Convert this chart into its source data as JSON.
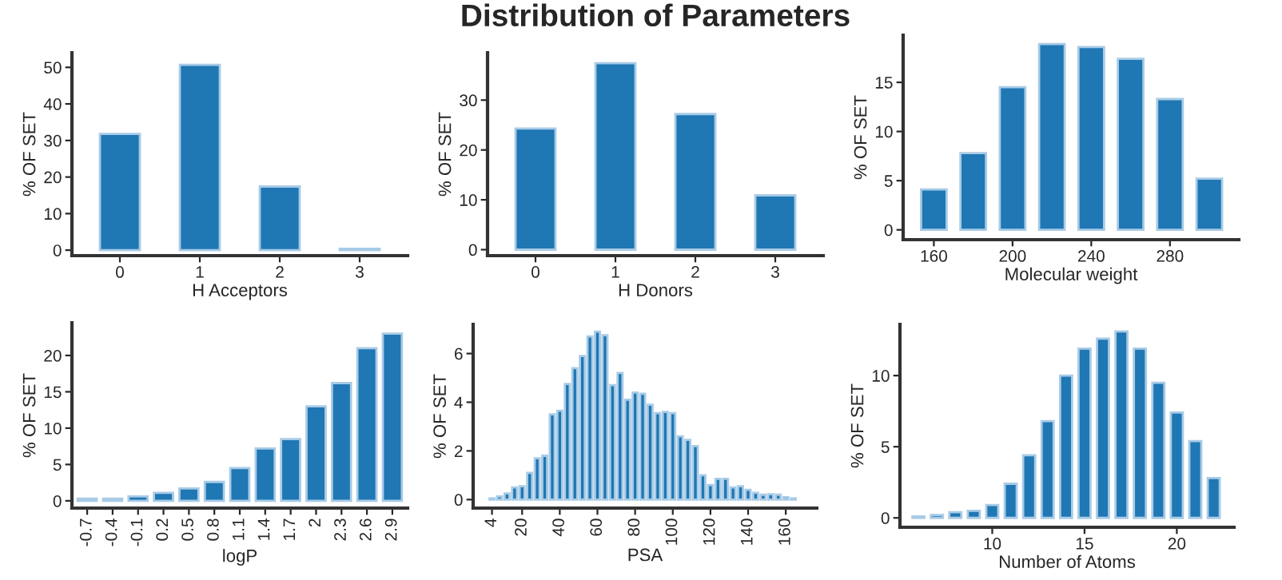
{
  "chart_data": [
    {
      "type": "bar",
      "xlabel": "H Acceptors",
      "ylabel": "% OF SET",
      "categories": [
        "0",
        "1",
        "2",
        "3"
      ],
      "values": [
        31.8,
        50.7,
        17.4,
        0.4
      ],
      "color": "#1f77b4",
      "ylim": [
        -1.5,
        54
      ],
      "yticks": [
        0,
        10,
        20,
        30,
        40,
        50
      ],
      "grid": false,
      "legend": false
    },
    {
      "type": "bar",
      "title": "Distribution of Parameters",
      "xlabel": "H Donors",
      "ylabel": "% OF SET",
      "categories": [
        "0",
        "1",
        "2",
        "3"
      ],
      "values": [
        24.3,
        37.4,
        27.2,
        10.9
      ],
      "color": "#1f77b4",
      "ylim": [
        -1.2,
        39.5
      ],
      "yticks": [
        0,
        10,
        20,
        30
      ],
      "grid": false,
      "legend": false
    },
    {
      "type": "bar",
      "xlabel": "Molecular weight",
      "ylabel": "% OF SET",
      "x": [
        160,
        180,
        200,
        220,
        240,
        260,
        280,
        300
      ],
      "values": [
        4.1,
        7.8,
        14.5,
        18.9,
        18.6,
        17.4,
        13.3,
        5.2
      ],
      "color": "#1f77b4",
      "xlim": [
        144.4,
        315
      ],
      "xticks": [
        160,
        200,
        240,
        280
      ],
      "ylim": [
        -1,
        19.8
      ],
      "yticks": [
        0,
        5,
        10,
        15
      ],
      "grid": false,
      "legend": false
    },
    {
      "type": "bar",
      "xlabel": "logP",
      "ylabel": "% OF SET",
      "categories": [
        "-0.7",
        "-0.4",
        "-0.1",
        "0.2",
        "0.5",
        "0.8",
        "1.1",
        "1.4",
        "1.7",
        "2",
        "2.3",
        "2.6",
        "2.9"
      ],
      "values": [
        0.3,
        0.3,
        0.6,
        1.1,
        1.7,
        2.6,
        4.5,
        7.2,
        8.5,
        13,
        16.2,
        21,
        23
      ],
      "color": "#1f77b4",
      "ylim": [
        -1,
        24.5
      ],
      "yticks": [
        0,
        5,
        10,
        15,
        20
      ],
      "grid": false,
      "legend": false
    },
    {
      "type": "bar",
      "xlabel": "PSA",
      "ylabel": "% OF SET",
      "x": [
        4,
        8,
        12,
        16,
        20,
        24,
        28,
        32,
        36,
        40,
        44,
        48,
        52,
        56,
        60,
        64,
        68,
        72,
        76,
        80,
        84,
        88,
        92,
        96,
        100,
        104,
        108,
        112,
        116,
        120,
        124,
        128,
        132,
        136,
        140,
        144,
        148,
        152,
        156,
        160,
        164
      ],
      "values": [
        0.05,
        0.13,
        0.25,
        0.5,
        0.55,
        1.1,
        1.7,
        1.8,
        3.5,
        3.65,
        4.75,
        5.4,
        5.9,
        6.7,
        6.9,
        6.75,
        4.7,
        5.2,
        4.1,
        4.4,
        4.35,
        3.9,
        3.55,
        3.6,
        3.55,
        2.6,
        2.45,
        2.2,
        1.0,
        0.6,
        0.85,
        0.85,
        0.5,
        0.55,
        0.4,
        0.28,
        0.2,
        0.22,
        0.2,
        0.1,
        0.05
      ],
      "color": "#1f77b4",
      "xlim": [
        -6,
        176.5
      ],
      "xticks": [
        4,
        20,
        40,
        60,
        80,
        100,
        120,
        140,
        160
      ],
      "ylim": [
        -0.35,
        7.2
      ],
      "yticks": [
        0,
        2,
        4,
        6
      ],
      "grid": false,
      "legend": false
    },
    {
      "type": "bar",
      "xlabel": "Number of Atoms",
      "ylabel": "% OF SET",
      "x": [
        6,
        7,
        8,
        9,
        10,
        11,
        12,
        13,
        14,
        15,
        16,
        17,
        18,
        19,
        20,
        21,
        22
      ],
      "values": [
        0.1,
        0.2,
        0.4,
        0.5,
        0.9,
        2.4,
        4.4,
        6.8,
        10,
        11.9,
        12.6,
        13.1,
        11.9,
        9.5,
        7.4,
        5.4,
        2.8
      ],
      "color": "#1f77b4",
      "xlim": [
        5.0,
        23.1
      ],
      "xticks": [
        10,
        15,
        20
      ],
      "ylim": [
        -0.66,
        13.6
      ],
      "yticks": [
        0,
        5,
        10
      ],
      "grid": false,
      "legend": false
    }
  ]
}
